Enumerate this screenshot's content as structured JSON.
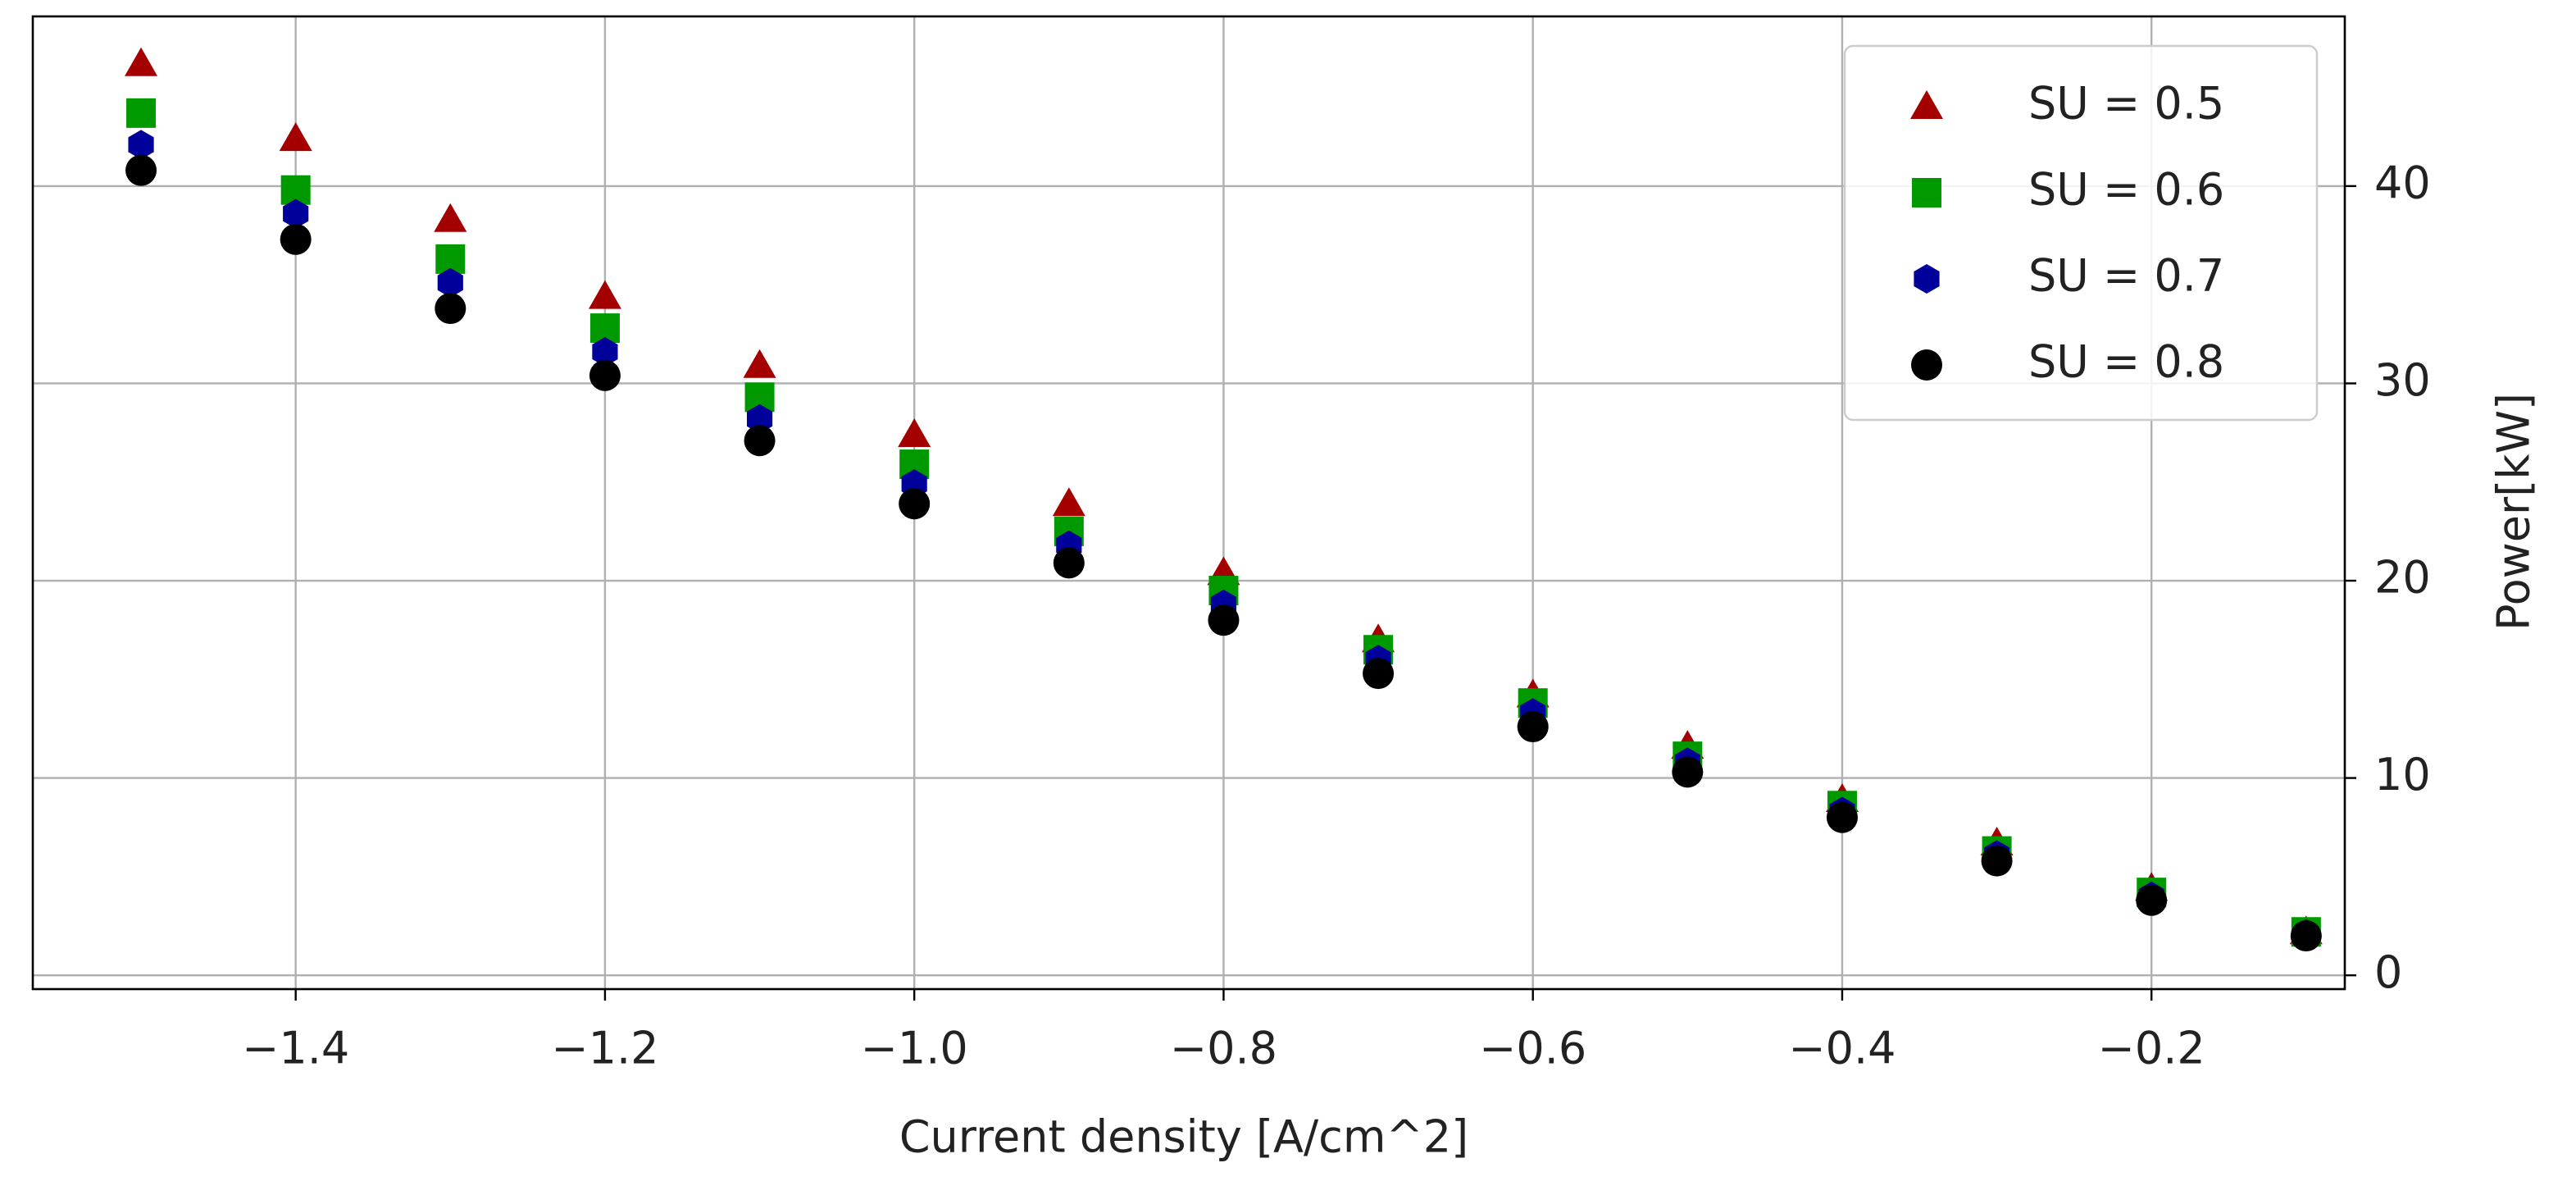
{
  "chart_data": {
    "type": "scatter",
    "x_label": "Current density [A/cm^2]",
    "y_label": "Power[kW]",
    "y_axis_side": "right",
    "x": [
      -1.5,
      -1.4,
      -1.3,
      -1.2,
      -1.1,
      -1.0,
      -0.9,
      -0.8,
      -0.7,
      -0.6,
      -0.5,
      -0.4,
      -0.3,
      -0.2,
      -0.1
    ],
    "series": [
      {
        "name": "SU = 0.5",
        "color": "#a50000",
        "marker": "triangle",
        "values": [
          46.2,
          42.4,
          38.3,
          34.4,
          30.9,
          27.4,
          23.9,
          20.4,
          17.0,
          14.2,
          11.6,
          8.9,
          6.7,
          4.4,
          2.2
        ]
      },
      {
        "name": "SU = 0.6",
        "color": "#009a00",
        "marker": "square",
        "values": [
          43.7,
          39.8,
          36.3,
          32.8,
          29.3,
          25.9,
          22.5,
          19.5,
          16.5,
          13.8,
          11.1,
          8.6,
          6.3,
          4.2,
          2.2
        ]
      },
      {
        "name": "SU = 0.7",
        "color": "#00009a",
        "marker": "hexagon",
        "values": [
          42.1,
          38.6,
          35.1,
          31.6,
          28.2,
          24.9,
          21.8,
          18.8,
          16.0,
          13.3,
          10.8,
          8.3,
          6.1,
          4.0,
          2.1
        ]
      },
      {
        "name": "SU = 0.8",
        "color": "#000000",
        "marker": "circle",
        "values": [
          40.8,
          37.3,
          33.8,
          30.4,
          27.1,
          23.9,
          20.9,
          18.0,
          15.3,
          12.6,
          10.3,
          8.0,
          5.8,
          3.8,
          2.0
        ]
      }
    ],
    "xlim": [
      -1.57,
      -0.075
    ],
    "ylim": [
      -0.7,
      48.6
    ],
    "xticks": [
      {
        "value": -1.4,
        "label": "−1.4"
      },
      {
        "value": -1.2,
        "label": "−1.2"
      },
      {
        "value": -1.0,
        "label": "−1.0"
      },
      {
        "value": -0.8,
        "label": "−0.8"
      },
      {
        "value": -0.6,
        "label": "−0.6"
      },
      {
        "value": -0.4,
        "label": "−0.4"
      },
      {
        "value": -0.2,
        "label": "−0.2"
      }
    ],
    "yticks": [
      0,
      10,
      20,
      30,
      40
    ],
    "grid": true,
    "legend": "upper right"
  }
}
